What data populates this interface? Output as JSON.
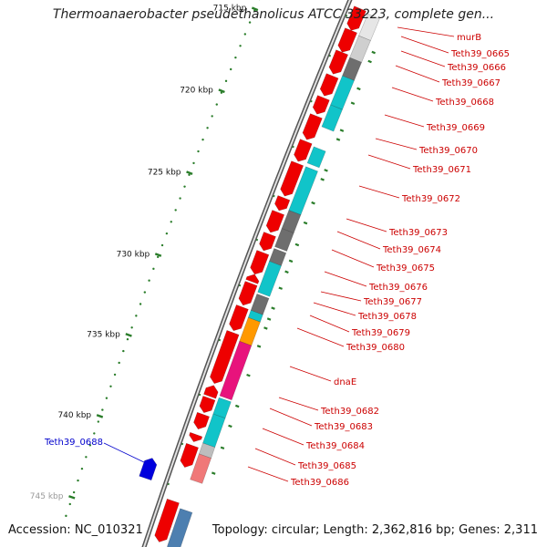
{
  "title": "Thermoanaerobacter pseudethanolicus ATCC 33223, complete gen...",
  "accession": "Accession: NC_010321",
  "topology": "Topology: circular; Length: 2,362,816 bp; Genes: 2,311",
  "colors": {
    "red": "#ee0000",
    "cyan": "#11c4c9",
    "gray": "#6e6e6e",
    "pink": "#e8137c",
    "orange": "#ff9900",
    "salmon": "#f07878",
    "steel": "#4d7fb0",
    "blue": "#0000dd",
    "tick_green": "#2a7d2a",
    "label_red": "#cc0000",
    "label_blue": "#0000cc"
  },
  "kbp_ticks": [
    {
      "label": "715 kbp"
    },
    {
      "label": "720 kbp"
    },
    {
      "label": "725 kbp"
    },
    {
      "label": "730 kbp"
    },
    {
      "label": "735 kbp"
    },
    {
      "label": "740 kbp"
    },
    {
      "label": "745 kbp"
    }
  ],
  "gene_labels": [
    {
      "name": "murB",
      "color": "red"
    },
    {
      "name": "Teth39_0665",
      "color": "red"
    },
    {
      "name": "Teth39_0666",
      "color": "red"
    },
    {
      "name": "Teth39_0667",
      "color": "red"
    },
    {
      "name": "Teth39_0668",
      "color": "red"
    },
    {
      "name": "Teth39_0669",
      "color": "red"
    },
    {
      "name": "Teth39_0670",
      "color": "red"
    },
    {
      "name": "Teth39_0671",
      "color": "red"
    },
    {
      "name": "Teth39_0672",
      "color": "red"
    },
    {
      "name": "Teth39_0673",
      "color": "red"
    },
    {
      "name": "Teth39_0674",
      "color": "red"
    },
    {
      "name": "Teth39_0675",
      "color": "red"
    },
    {
      "name": "Teth39_0676",
      "color": "red"
    },
    {
      "name": "Teth39_0677",
      "color": "red"
    },
    {
      "name": "Teth39_0678",
      "color": "red"
    },
    {
      "name": "Teth39_0679",
      "color": "red"
    },
    {
      "name": "Teth39_0680",
      "color": "red"
    },
    {
      "name": "dnaE",
      "color": "red"
    },
    {
      "name": "Teth39_0682",
      "color": "red"
    },
    {
      "name": "Teth39_0683",
      "color": "red"
    },
    {
      "name": "Teth39_0684",
      "color": "red"
    },
    {
      "name": "Teth39_0685",
      "color": "red"
    },
    {
      "name": "Teth39_0686",
      "color": "red"
    },
    {
      "name": "Teth39_0688",
      "color": "blue"
    }
  ]
}
